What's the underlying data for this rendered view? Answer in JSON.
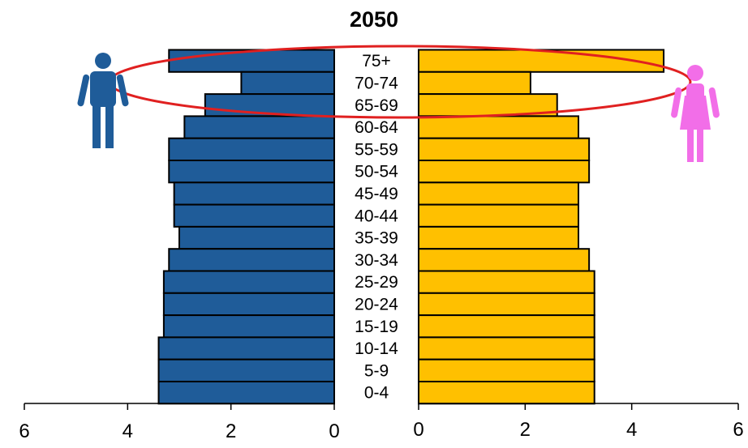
{
  "chart_data": {
    "type": "bar",
    "orientation": "horizontal",
    "layout": "population-pyramid",
    "title": "2050",
    "categories": [
      "75+",
      "70-74",
      "65-69",
      "60-64",
      "55-59",
      "50-54",
      "45-49",
      "40-44",
      "35-39",
      "30-34",
      "25-29",
      "20-24",
      "15-19",
      "10-14",
      "5-9",
      "0-4"
    ],
    "series": [
      {
        "side": "left",
        "color": "#1f5c99",
        "icon": "male-person-icon",
        "values": [
          3.2,
          1.8,
          2.5,
          2.9,
          3.2,
          3.2,
          3.1,
          3.1,
          3.0,
          3.2,
          3.3,
          3.3,
          3.3,
          3.4,
          3.4,
          3.4
        ]
      },
      {
        "side": "right",
        "color": "#ffc000",
        "icon": "female-person-icon",
        "values": [
          4.6,
          2.1,
          2.6,
          3.0,
          3.2,
          3.2,
          3.0,
          3.0,
          3.0,
          3.2,
          3.3,
          3.3,
          3.3,
          3.3,
          3.3,
          3.3
        ]
      }
    ],
    "xlim": [
      0,
      6
    ],
    "ticks": [
      "0",
      "2",
      "4",
      "6"
    ],
    "highlight": {
      "shape": "ellipse",
      "color": "#e02020",
      "categories": [
        "75+",
        "70-74",
        "65-69"
      ]
    },
    "male_icon_color": "#1f5c99",
    "female_icon_color": "#f26ee8"
  }
}
